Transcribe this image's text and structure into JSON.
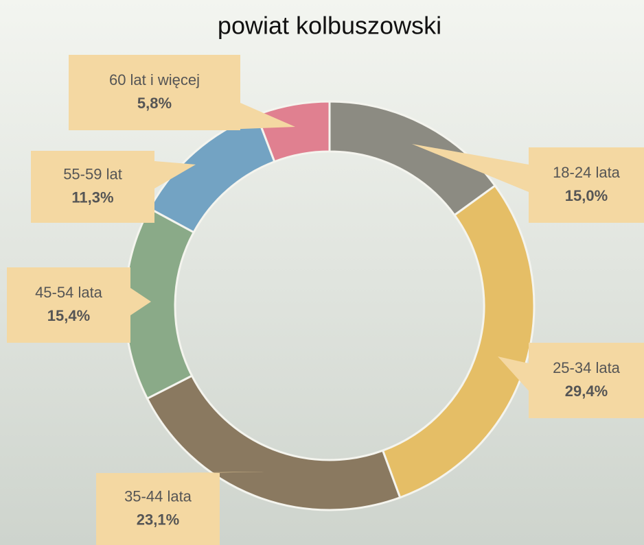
{
  "chart_data": {
    "type": "donut",
    "title": "powiat kolbuszowski",
    "categories": [
      "18-24 lata",
      "25-34 lata",
      "35-44 lata",
      "45-54 lata",
      "55-59 lat",
      "60 lat i więcej"
    ],
    "values": [
      15.0,
      29.4,
      23.1,
      15.4,
      11.3,
      5.8
    ],
    "value_labels": [
      "15,0%",
      "29,4%",
      "23,1%",
      "15,4%",
      "11,3%",
      "5,8%"
    ],
    "colors": [
      "#8c8b82",
      "#e5be66",
      "#8a7960",
      "#8aaa88",
      "#73a3c3",
      "#e08090"
    ]
  }
}
